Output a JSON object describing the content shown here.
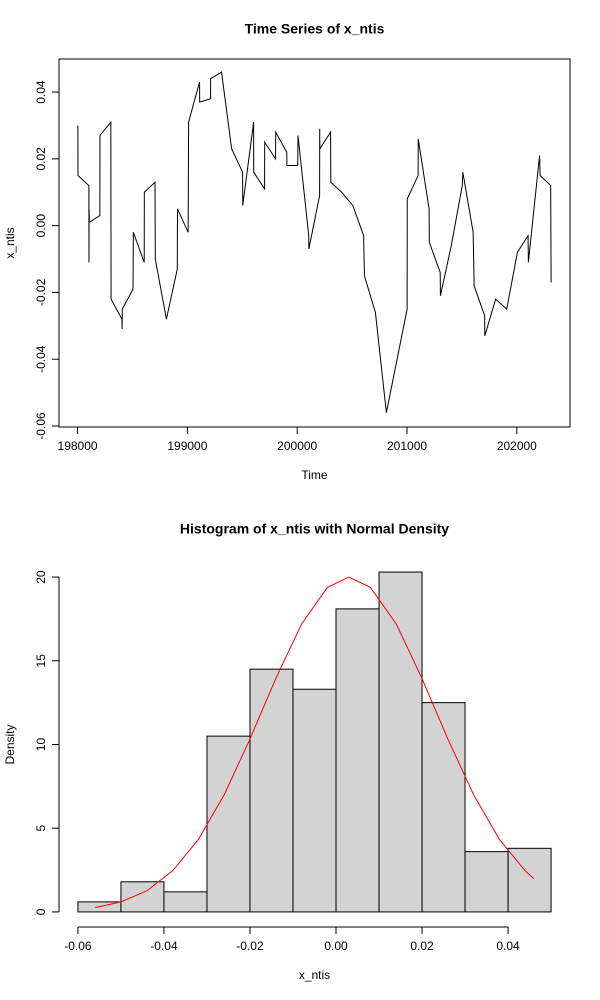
{
  "chart_data": [
    {
      "type": "line",
      "title": "Time Series of x_ntis",
      "xlabel": "Time",
      "ylabel": "x_ntis",
      "box": true,
      "xlim": [
        197831,
        202484
      ],
      "xticks": [
        198000,
        199000,
        200000,
        201000,
        202000
      ],
      "ylim": [
        -0.0603,
        0.0499
      ],
      "yticks": [
        -0.06,
        -0.04,
        -0.02,
        {
          "value": 0,
          "label": "0.00"
        },
        0.02,
        0.04
      ],
      "color": "#000000",
      "x": [
        198003,
        198004,
        198103,
        198104,
        198105,
        198107,
        198203,
        198204,
        198303,
        198305,
        198404,
        198406,
        198407,
        198505,
        198508,
        198607,
        198608,
        198705,
        198708,
        198809,
        198908,
        198910,
        199007,
        199011,
        199111,
        199112,
        199211,
        199212,
        199311,
        199403,
        199503,
        199504,
        199603,
        199604,
        199703,
        199704,
        199803,
        199804,
        199905,
        199906,
        200005,
        200007,
        200105,
        200106,
        200204,
        200205,
        200206,
        200304,
        200306,
        200405,
        200507,
        200605,
        200612,
        200712,
        200812,
        201001,
        201002,
        201101,
        201102,
        201201,
        201203,
        201302,
        201304,
        201403,
        201503,
        201508,
        201602,
        201611,
        201707,
        201708,
        201807,
        201908,
        202005,
        202102,
        202105,
        202207,
        202212,
        202308,
        202312
      ],
      "values": [
        0.03,
        0.015,
        0.012,
        -0.011,
        0.005,
        0.001,
        0.003,
        0.027,
        0.031,
        -0.022,
        -0.028,
        -0.031,
        -0.025,
        -0.019,
        -0.002,
        -0.011,
        0.01,
        0.013,
        -0.01,
        -0.028,
        -0.013,
        0.005,
        -0.002,
        0.031,
        0.043,
        0.037,
        0.038,
        0.044,
        0.046,
        0.023,
        0.016,
        0.006,
        0.031,
        0.016,
        0.011,
        0.025,
        0.02,
        0.028,
        0.022,
        0.018,
        0.018,
        0.027,
        -0.003,
        -0.007,
        0.009,
        0.029,
        0.023,
        0.028,
        0.013,
        0.01,
        0.006,
        -0.003,
        -0.015,
        -0.026,
        -0.056,
        -0.025,
        0.008,
        0.015,
        0.026,
        0.005,
        -0.005,
        -0.014,
        -0.021,
        -0.006,
        0.012,
        0.016,
        -0.002,
        -0.018,
        -0.027,
        -0.033,
        -0.022,
        -0.025,
        -0.008,
        -0.003,
        -0.011,
        0.021,
        0.015,
        0.012,
        -0.017
      ]
    },
    {
      "type": "histogram",
      "title": "Histogram of x_ntis with Normal Density",
      "xlabel": "x_ntis",
      "ylabel": "Density",
      "box": false,
      "xlim": [
        -0.0644,
        0.0544
      ],
      "xticks": [
        -0.06,
        -0.04,
        -0.02,
        {
          "value": 0,
          "label": "0.00"
        },
        0.02,
        0.04
      ],
      "ylim": [
        -0.9,
        20.9
      ],
      "yticks": [
        0,
        5,
        10,
        15,
        20
      ],
      "color": "#d3d3d3",
      "bins": [
        -0.06,
        -0.05,
        -0.04,
        -0.03,
        -0.02,
        -0.01,
        0,
        0.01,
        0.02,
        0.03,
        0.04,
        0.05
      ],
      "values": [
        0.6,
        1.8,
        1.2,
        10.5,
        14.5,
        13.3,
        18.1,
        20.3,
        12.5,
        3.6,
        3.8
      ],
      "curve": {
        "color": "#ff0000",
        "x": [
          -0.056,
          -0.05,
          -0.044,
          -0.038,
          -0.032,
          -0.026,
          -0.02,
          -0.014,
          -0.008,
          -0.002,
          0.003,
          0.008,
          0.014,
          0.02,
          0.026,
          0.032,
          0.038,
          0.044,
          0.046
        ],
        "y": [
          0.26,
          0.6,
          1.26,
          2.45,
          4.33,
          6.99,
          10.33,
          13.94,
          17.2,
          19.38,
          20,
          19.38,
          17.2,
          13.94,
          10.33,
          6.99,
          4.33,
          2.45,
          1.98
        ]
      }
    }
  ]
}
